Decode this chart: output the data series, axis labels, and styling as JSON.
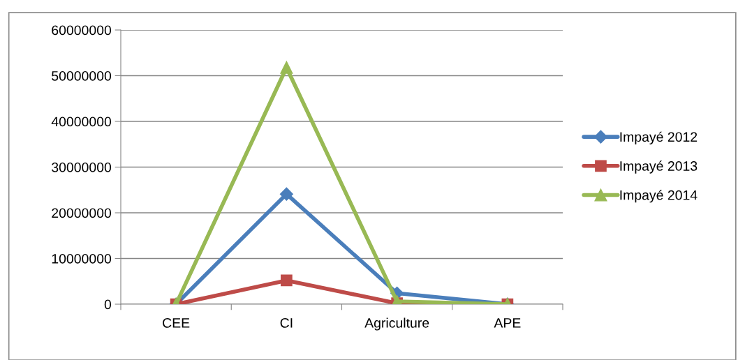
{
  "chart_data": {
    "type": "line",
    "categories": [
      "CEE",
      "CI",
      "Agriculture",
      "APE"
    ],
    "series": [
      {
        "name": "Impayé 2012",
        "color": "#4a7ebb",
        "marker": "diamond",
        "values": [
          0,
          24100000,
          2400000,
          0
        ]
      },
      {
        "name": "Impayé 2013",
        "color": "#be4b48",
        "marker": "square",
        "values": [
          0,
          5200000,
          200000,
          0
        ]
      },
      {
        "name": "Impayé 2014",
        "color": "#98b954",
        "marker": "triangle",
        "values": [
          0,
          51800000,
          600000,
          0
        ]
      }
    ],
    "ylim": [
      0,
      60000000
    ],
    "yticks": [
      0,
      10000000,
      20000000,
      30000000,
      40000000,
      50000000,
      60000000
    ],
    "grid": "y",
    "legend": "right",
    "line_style": "solid"
  }
}
